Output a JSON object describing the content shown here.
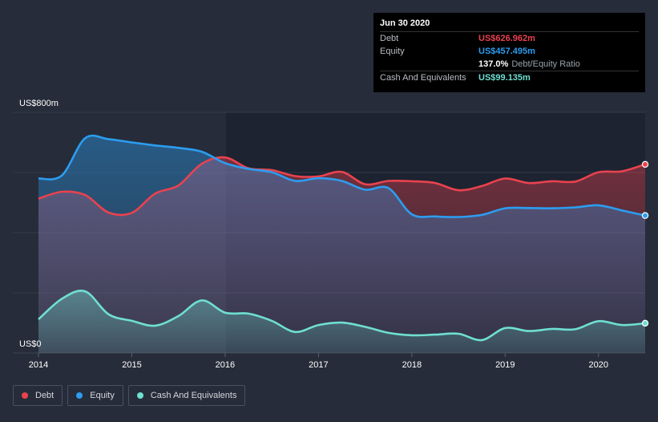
{
  "chart_data": {
    "type": "area",
    "title": "",
    "xlabel": "",
    "ylabel": "",
    "y_top_label": "US$800m",
    "y_bottom_label": "US$0",
    "ylim": [
      0,
      800
    ],
    "xlim": [
      2014.0,
      2020.5
    ],
    "x_ticks": [
      {
        "value": 2014,
        "label": "2014"
      },
      {
        "value": 2015,
        "label": "2015"
      },
      {
        "value": 2016,
        "label": "2016"
      },
      {
        "value": 2017,
        "label": "2017"
      },
      {
        "value": 2018,
        "label": "2018"
      },
      {
        "value": 2019,
        "label": "2019"
      },
      {
        "value": 2020,
        "label": "2020"
      }
    ],
    "gridlines": [
      0,
      200,
      400,
      600,
      800
    ],
    "series": [
      {
        "name": "Debt",
        "color": "#e9424f",
        "points": [
          [
            2014.0,
            513
          ],
          [
            2014.25,
            536
          ],
          [
            2014.5,
            525
          ],
          [
            2014.75,
            467
          ],
          [
            2015.0,
            466
          ],
          [
            2015.25,
            530
          ],
          [
            2015.5,
            557
          ],
          [
            2015.75,
            629
          ],
          [
            2016.0,
            650
          ],
          [
            2016.25,
            614
          ],
          [
            2016.5,
            608
          ],
          [
            2016.75,
            588
          ],
          [
            2017.0,
            587
          ],
          [
            2017.25,
            602
          ],
          [
            2017.5,
            561
          ],
          [
            2017.75,
            572
          ],
          [
            2018.0,
            571
          ],
          [
            2018.25,
            565
          ],
          [
            2018.5,
            541
          ],
          [
            2018.75,
            555
          ],
          [
            2019.0,
            580
          ],
          [
            2019.25,
            565
          ],
          [
            2019.5,
            571
          ],
          [
            2019.75,
            570
          ],
          [
            2020.0,
            601
          ],
          [
            2020.25,
            604
          ],
          [
            2020.5,
            627
          ]
        ]
      },
      {
        "name": "Equity",
        "color": "#2c9df0",
        "points": [
          [
            2014.0,
            580
          ],
          [
            2014.25,
            590
          ],
          [
            2014.5,
            714
          ],
          [
            2014.75,
            711
          ],
          [
            2015.0,
            700
          ],
          [
            2015.25,
            690
          ],
          [
            2015.5,
            682
          ],
          [
            2015.75,
            669
          ],
          [
            2016.0,
            631
          ],
          [
            2016.25,
            612
          ],
          [
            2016.5,
            601
          ],
          [
            2016.75,
            572
          ],
          [
            2017.0,
            581
          ],
          [
            2017.25,
            572
          ],
          [
            2017.5,
            543
          ],
          [
            2017.75,
            548
          ],
          [
            2018.0,
            461
          ],
          [
            2018.25,
            454
          ],
          [
            2018.5,
            452
          ],
          [
            2018.75,
            459
          ],
          [
            2019.0,
            481
          ],
          [
            2019.25,
            482
          ],
          [
            2019.5,
            481
          ],
          [
            2019.75,
            484
          ],
          [
            2020.0,
            491
          ],
          [
            2020.25,
            474
          ],
          [
            2020.5,
            457
          ]
        ]
      },
      {
        "name": "Cash And Equivalents",
        "color": "#6fdfd2",
        "points": [
          [
            2014.0,
            112
          ],
          [
            2014.25,
            180
          ],
          [
            2014.5,
            205
          ],
          [
            2014.75,
            129
          ],
          [
            2015.0,
            107
          ],
          [
            2015.25,
            91
          ],
          [
            2015.5,
            123
          ],
          [
            2015.75,
            175
          ],
          [
            2016.0,
            134
          ],
          [
            2016.25,
            131
          ],
          [
            2016.5,
            107
          ],
          [
            2016.75,
            70
          ],
          [
            2017.0,
            93
          ],
          [
            2017.25,
            101
          ],
          [
            2017.5,
            87
          ],
          [
            2017.75,
            67
          ],
          [
            2018.0,
            59
          ],
          [
            2018.25,
            61
          ],
          [
            2018.5,
            64
          ],
          [
            2018.75,
            43
          ],
          [
            2019.0,
            83
          ],
          [
            2019.25,
            73
          ],
          [
            2019.5,
            80
          ],
          [
            2019.75,
            79
          ],
          [
            2020.0,
            106
          ],
          [
            2020.25,
            93
          ],
          [
            2020.5,
            99
          ]
        ]
      }
    ],
    "tooltip": {
      "date": "Jun 30 2020",
      "rows": [
        {
          "label": "Debt",
          "value": "US$626.962m",
          "color": "#e9424f"
        },
        {
          "label": "Equity",
          "value": "US$457.495m",
          "color": "#2c9df0"
        },
        {
          "label": "",
          "value": "137.0%",
          "color": "#ffffff",
          "extra": "Debt/Equity Ratio"
        },
        {
          "label": "Cash And Equivalents",
          "value": "US$99.135m",
          "color": "#6fdfd2"
        }
      ]
    },
    "legend": [
      {
        "name": "Debt",
        "color": "#e9424f"
      },
      {
        "name": "Equity",
        "color": "#2c9df0"
      },
      {
        "name": "Cash And Equivalents",
        "color": "#6fdfd2"
      }
    ]
  }
}
